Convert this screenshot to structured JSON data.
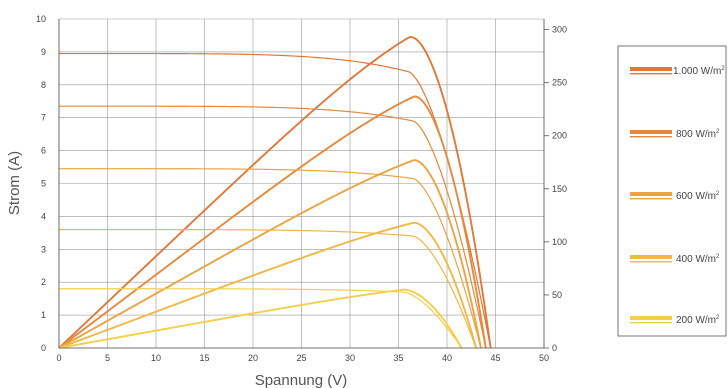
{
  "chart_data": {
    "type": "line",
    "xlabel": "Spannung (V)",
    "ylabel": "Strom (A)",
    "xlim": [
      0,
      50
    ],
    "ylim": [
      0,
      10
    ],
    "y2lim": [
      0,
      310
    ],
    "x_ticks": [
      "0",
      "5",
      "10",
      "15",
      "20",
      "25",
      "30",
      "35",
      "40",
      "45",
      "50"
    ],
    "y_ticks": [
      "0",
      "1",
      "2",
      "3",
      "4",
      "5",
      "6",
      "7",
      "8",
      "9",
      "10"
    ],
    "y2_ticks": [
      "0",
      "50",
      "100",
      "150",
      "200",
      "250",
      "300"
    ],
    "grid": true,
    "legend_position": "right",
    "series": [
      {
        "name": "1.000 W/m²",
        "color": "#e0783a",
        "isc": 8.95,
        "voc": 44.5,
        "bend": 36.0,
        "knee_drop": 0.55,
        "pmax": 293
      },
      {
        "name": "800 W/m²",
        "color": "#e6893e",
        "isc": 7.35,
        "voc": 44.0,
        "bend": 36.5,
        "knee_drop": 0.45,
        "pmax": 237
      },
      {
        "name": "600 W/m²",
        "color": "#eba443",
        "isc": 5.45,
        "voc": 43.5,
        "bend": 36.5,
        "knee_drop": 0.3,
        "pmax": 177
      },
      {
        "name": "400 W/m²",
        "color": "#f0b847",
        "isc": 3.6,
        "voc": 43.0,
        "bend": 36.5,
        "knee_drop": 0.2,
        "pmax": 118
      },
      {
        "name": "200 W/m²",
        "color": "#f4cf4a",
        "isc": 1.8,
        "voc": 41.5,
        "bend": 35.5,
        "knee_drop": 0.1,
        "pmax": 55
      }
    ]
  }
}
